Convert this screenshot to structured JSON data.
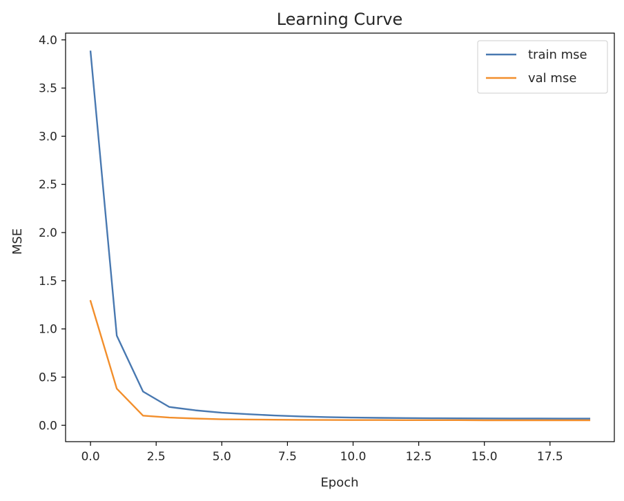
{
  "chart_data": {
    "type": "line",
    "title": "Learning Curve",
    "xlabel": "Epoch",
    "ylabel": "MSE",
    "xlim": [
      -0.95,
      19.95
    ],
    "ylim": [
      -0.17,
      4.07
    ],
    "xticks": [
      0.0,
      2.5,
      5.0,
      7.5,
      10.0,
      12.5,
      15.0,
      17.5
    ],
    "xtick_labels": [
      "0.0",
      "2.5",
      "5.0",
      "7.5",
      "10.0",
      "12.5",
      "15.0",
      "17.5"
    ],
    "yticks": [
      0.0,
      0.5,
      1.0,
      1.5,
      2.0,
      2.5,
      3.0,
      3.5,
      4.0
    ],
    "ytick_labels": [
      "0.0",
      "0.5",
      "1.0",
      "1.5",
      "2.0",
      "2.5",
      "3.0",
      "3.5",
      "4.0"
    ],
    "grid": false,
    "legend_position": "top-right",
    "x": [
      0,
      1,
      2,
      3,
      4,
      5,
      6,
      7,
      8,
      9,
      10,
      11,
      12,
      13,
      14,
      15,
      16,
      17,
      18,
      19
    ],
    "series": [
      {
        "name": "train mse",
        "color": "#4878b0",
        "values": [
          3.88,
          0.93,
          0.35,
          0.19,
          0.155,
          0.13,
          0.115,
          0.102,
          0.092,
          0.085,
          0.08,
          0.077,
          0.075,
          0.073,
          0.072,
          0.071,
          0.07,
          0.07,
          0.069,
          0.069
        ]
      },
      {
        "name": "val mse",
        "color": "#f28e2b",
        "values": [
          1.29,
          0.38,
          0.1,
          0.08,
          0.07,
          0.062,
          0.06,
          0.058,
          0.056,
          0.055,
          0.054,
          0.054,
          0.053,
          0.053,
          0.053,
          0.052,
          0.052,
          0.052,
          0.052,
          0.052
        ]
      }
    ]
  }
}
